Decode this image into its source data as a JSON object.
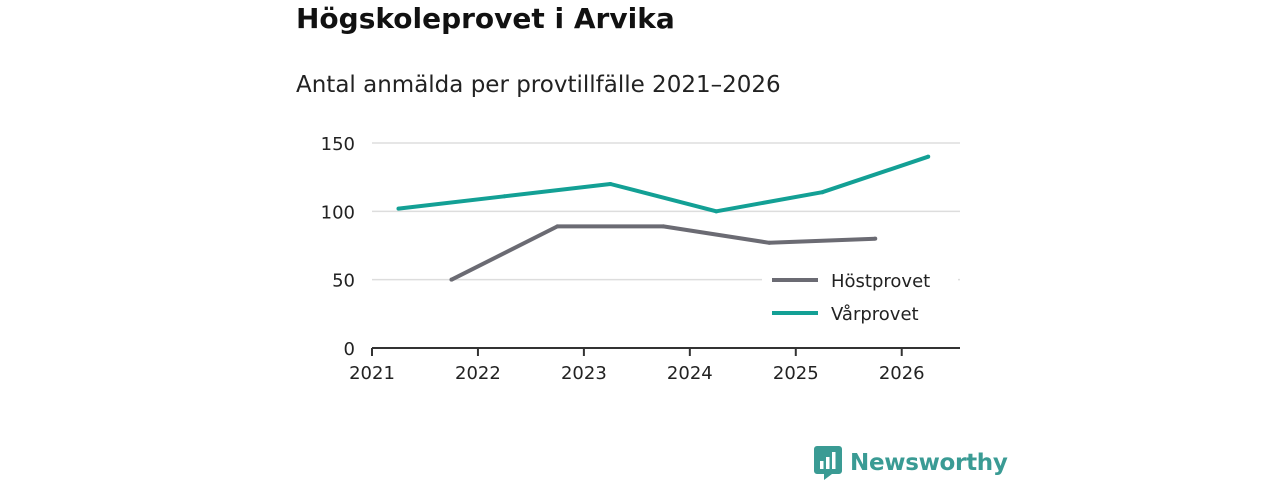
{
  "title": "Högskoleprovet i Arvika",
  "subtitle": "Antal anmälda per provtillfälle 2021–2026",
  "brand": {
    "name": "Newsworthy",
    "icon": "newsworthy-logo-icon",
    "color": "#3a9b94"
  },
  "chart_data": {
    "type": "line",
    "x_ticks": [
      "2021",
      "2022",
      "2023",
      "2024",
      "2025",
      "2026"
    ],
    "y_ticks": [
      "0",
      "50",
      "100",
      "150"
    ],
    "ylim": [
      0,
      150
    ],
    "xlim": [
      2021,
      2026.55
    ],
    "grid": true,
    "legend_position": "bottom-right",
    "series": [
      {
        "name": "Höstprovet",
        "color": "#6b6b73",
        "points": [
          {
            "x": 2021.75,
            "y": 50
          },
          {
            "x": 2022.75,
            "y": 89
          },
          {
            "x": 2023.75,
            "y": 89
          },
          {
            "x": 2024.75,
            "y": 77
          },
          {
            "x": 2025.75,
            "y": 80
          }
        ]
      },
      {
        "name": "Vårprovet",
        "color": "#13a095",
        "points": [
          {
            "x": 2021.25,
            "y": 102
          },
          {
            "x": 2022.25,
            "y": 111
          },
          {
            "x": 2023.25,
            "y": 120
          },
          {
            "x": 2024.25,
            "y": 100
          },
          {
            "x": 2025.25,
            "y": 114
          },
          {
            "x": 2026.25,
            "y": 140
          }
        ]
      }
    ]
  }
}
